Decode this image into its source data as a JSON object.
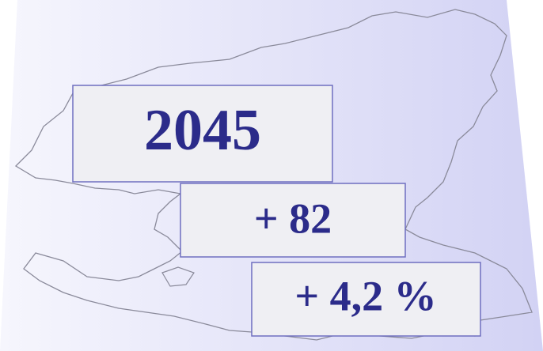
{
  "boxes": [
    {
      "text": "2045"
    },
    {
      "text": "+ 82"
    },
    {
      "text": "+ 4,2 %"
    }
  ]
}
